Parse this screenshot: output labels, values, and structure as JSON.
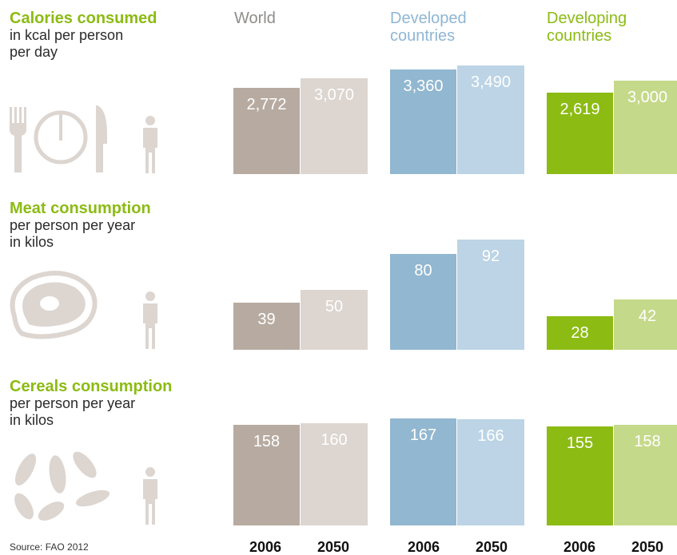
{
  "groups": [
    {
      "name": "World",
      "color": "#a8998b",
      "colors": [
        "#b7aba1",
        "#dcd5d0"
      ],
      "head_color": "#8f8c89"
    },
    {
      "name": "Developed countries",
      "lines": [
        "Developed",
        "countries"
      ],
      "colors": [
        "#92b7d0",
        "#bcd4e5"
      ],
      "head_color": "#8fb6d3"
    },
    {
      "name": "Developing countries",
      "lines": [
        "Developing",
        "countries"
      ],
      "colors": [
        "#8cbb13",
        "#c5d98a"
      ],
      "head_color": "#8cbb13"
    }
  ],
  "years": [
    "2006",
    "2050"
  ],
  "rows": [
    {
      "title": "Calories consumed",
      "sub1": "in kcal per person",
      "sub2": "per day",
      "icon": "fork-plate-knife-icon"
    },
    {
      "title": "Meat consumption",
      "sub1": "per person per year",
      "sub2": "in kilos",
      "icon": "steak-icon"
    },
    {
      "title": "Cereals consumption",
      "sub1": "per person per year",
      "sub2": "in kilos",
      "icon": "grains-icon"
    }
  ],
  "source": "Source: FAO 2012",
  "chart_data": [
    {
      "type": "bar",
      "title": "Calories consumed",
      "subtitle": "in kcal per person per day",
      "categories": [
        "World",
        "Developed countries",
        "Developing countries"
      ],
      "series": [
        {
          "name": "2006",
          "values": [
            2772,
            3360,
            2619
          ],
          "labels": [
            "2,772",
            "3,360",
            "2,619"
          ]
        },
        {
          "name": "2050",
          "values": [
            3070,
            3490,
            3000
          ],
          "labels": [
            "3,070",
            "3,490",
            "3,000"
          ]
        }
      ]
    },
    {
      "type": "bar",
      "title": "Meat consumption",
      "subtitle": "per person per year in kilos",
      "categories": [
        "World",
        "Developed countries",
        "Developing countries"
      ],
      "series": [
        {
          "name": "2006",
          "values": [
            39,
            80,
            28
          ],
          "labels": [
            "39",
            "80",
            "28"
          ]
        },
        {
          "name": "2050",
          "values": [
            50,
            92,
            42
          ],
          "labels": [
            "50",
            "92",
            "42"
          ]
        }
      ]
    },
    {
      "type": "bar",
      "title": "Cereals consumption",
      "subtitle": "per person per year in kilos",
      "categories": [
        "World",
        "Developed countries",
        "Developing countries"
      ],
      "series": [
        {
          "name": "2006",
          "values": [
            158,
            167,
            155
          ],
          "labels": [
            "158",
            "167",
            "155"
          ]
        },
        {
          "name": "2050",
          "values": [
            160,
            166,
            158
          ],
          "labels": [
            "160",
            "166",
            "158"
          ]
        }
      ]
    }
  ]
}
